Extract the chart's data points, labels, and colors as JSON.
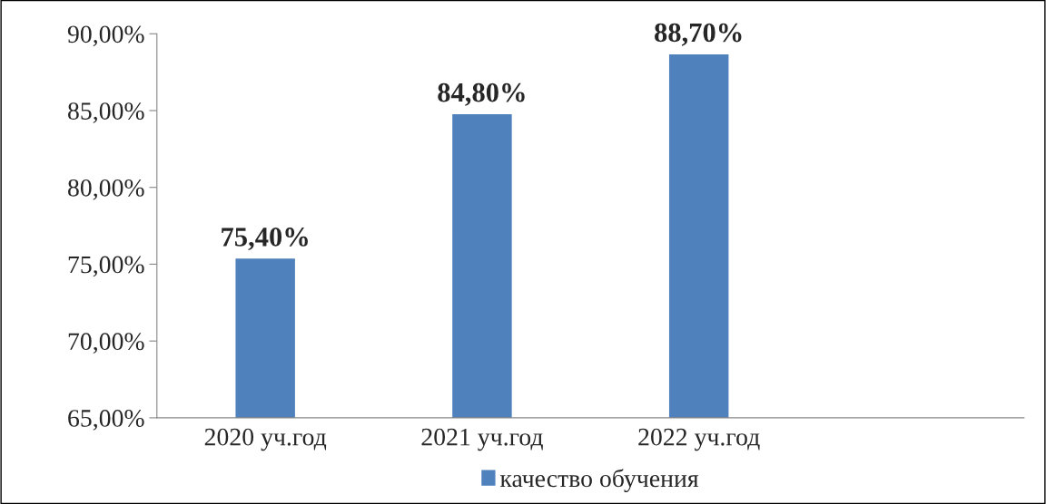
{
  "chart_data": {
    "type": "bar",
    "categories": [
      "2020 уч.год",
      "2021 уч.год",
      "2022 уч.год",
      null
    ],
    "series": [
      {
        "name": "качество обучения",
        "color": "#4f81bd",
        "values": [
          75.4,
          84.8,
          88.7,
          null
        ]
      }
    ],
    "value_labels": [
      "75,40%",
      "84,80%",
      "88,70%",
      null
    ],
    "ylim": [
      65,
      90
    ],
    "yticks": [
      {
        "value": 65,
        "label": "65,00%"
      },
      {
        "value": 70,
        "label": "70,00%"
      },
      {
        "value": 75,
        "label": "75,00%"
      },
      {
        "value": 80,
        "label": "80,00%"
      },
      {
        "value": 85,
        "label": "85,00%"
      },
      {
        "value": 90,
        "label": "90,00%"
      }
    ],
    "grid": false,
    "legend": "bottom"
  }
}
